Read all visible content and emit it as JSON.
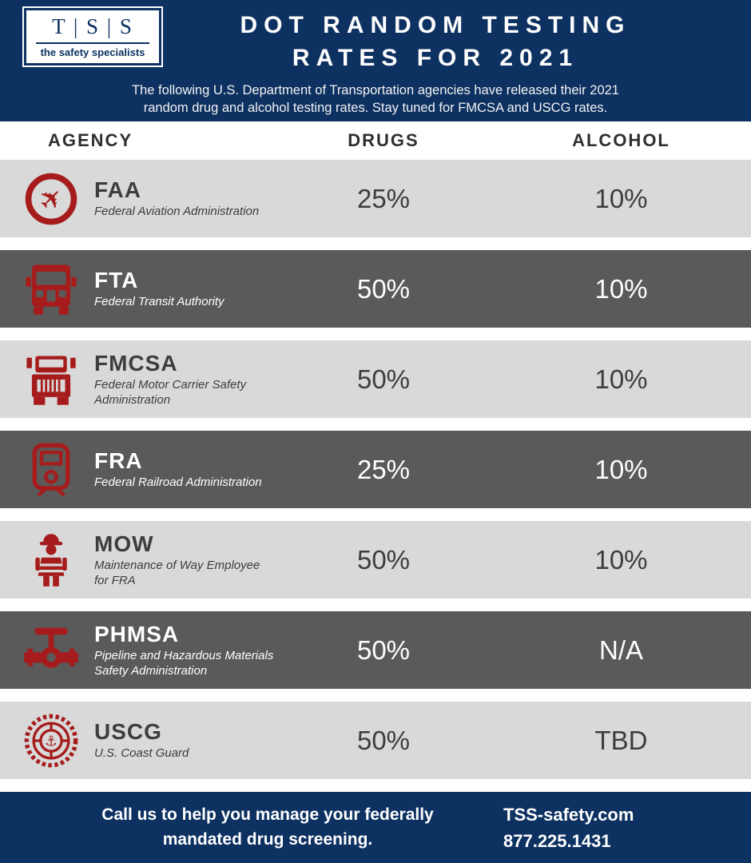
{
  "header": {
    "logo_text": "T | S | S",
    "logo_tagline": "the safety specialists",
    "title_line1": "DOT RANDOM TESTING",
    "title_line2": "RATES FOR 2021",
    "subtitle_line1": "The following U.S. Department of Transportation agencies have released their 2021",
    "subtitle_line2": "random drug and alcohol testing rates. Stay tuned for FMCSA and USCG rates."
  },
  "table": {
    "columns": [
      "AGENCY",
      "DRUGS",
      "ALCOHOL"
    ],
    "rows": [
      {
        "code": "FAA",
        "name": "Federal Aviation Administration",
        "drugs": "25%",
        "alcohol": "10%",
        "icon": "airplane-circle-icon",
        "shade": "light"
      },
      {
        "code": "FTA",
        "name": "Federal Transit Authority",
        "drugs": "50%",
        "alcohol": "10%",
        "icon": "bus-icon",
        "shade": "dark"
      },
      {
        "code": "FMCSA",
        "name": "Federal Motor Carrier Safety Administration",
        "drugs": "50%",
        "alcohol": "10%",
        "icon": "truck-icon",
        "shade": "light"
      },
      {
        "code": "FRA",
        "name": "Federal Railroad Administration",
        "drugs": "25%",
        "alcohol": "10%",
        "icon": "train-icon",
        "shade": "dark"
      },
      {
        "code": "MOW",
        "name": "Maintenance of Way Employee for FRA",
        "drugs": "50%",
        "alcohol": "10%",
        "icon": "worker-icon",
        "shade": "light"
      },
      {
        "code": "PHMSA",
        "name": "Pipeline and Hazardous Materials Safety Administration",
        "drugs": "50%",
        "alcohol": "N/A",
        "icon": "pipeline-valve-icon",
        "shade": "dark"
      },
      {
        "code": "USCG",
        "name": "U.S. Coast Guard",
        "drugs": "50%",
        "alcohol": "TBD",
        "icon": "coast-guard-icon",
        "shade": "light"
      }
    ]
  },
  "footer": {
    "message_line1": "Call us to help you manage your federally",
    "message_line2": "mandated drug screening.",
    "website": "TSS-safety.com",
    "phone": "877.225.1431"
  },
  "colors": {
    "navy": "#0d3161",
    "red": "#a61c1c",
    "light_row": "#d9d9d9",
    "dark_row": "#5a5a5a"
  },
  "chart_data": {
    "type": "table",
    "title": "DOT Random Testing Rates for 2021",
    "columns": [
      "Agency",
      "Drugs",
      "Alcohol"
    ],
    "rows": [
      [
        "FAA — Federal Aviation Administration",
        "25%",
        "10%"
      ],
      [
        "FTA — Federal Transit Authority",
        "50%",
        "10%"
      ],
      [
        "FMCSA — Federal Motor Carrier Safety Administration",
        "50%",
        "10%"
      ],
      [
        "FRA — Federal Railroad Administration",
        "25%",
        "10%"
      ],
      [
        "MOW — Maintenance of Way Employee for FRA",
        "50%",
        "10%"
      ],
      [
        "PHMSA — Pipeline and Hazardous Materials Safety Administration",
        "50%",
        "N/A"
      ],
      [
        "USCG — U.S. Coast Guard",
        "50%",
        "TBD"
      ]
    ]
  }
}
